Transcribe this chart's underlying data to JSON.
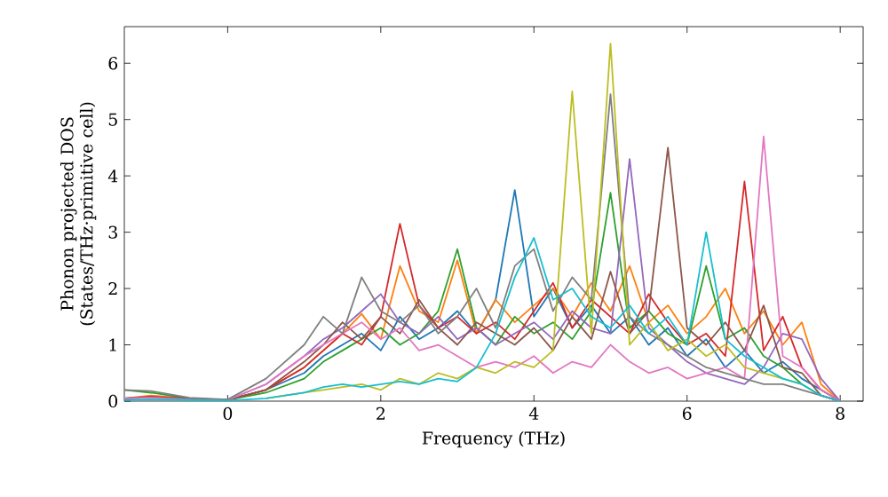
{
  "chart_data": {
    "type": "line",
    "xlabel": "Frequency (THz)",
    "ylabel": "Phonon projected DOS (States/THz·primitive cell)",
    "x": [
      -1.35,
      -1,
      -0.5,
      0,
      0.5,
      1,
      1.25,
      1.5,
      1.75,
      2,
      2.25,
      2.5,
      2.75,
      3,
      3.25,
      3.5,
      3.75,
      4,
      4.25,
      4.5,
      4.75,
      5,
      5.25,
      5.5,
      5.75,
      6,
      6.25,
      6.5,
      6.75,
      7,
      7.25,
      7.5,
      7.75,
      8
    ],
    "xlim": [
      -1.35,
      8.3
    ],
    "ylim": [
      0,
      6.65
    ],
    "xticks": [
      0,
      2,
      4,
      6,
      8
    ],
    "yticks": [
      0,
      1,
      2,
      3,
      4,
      5,
      6
    ],
    "grid": false,
    "marker": "none",
    "line_style": "solid",
    "series": [
      {
        "color": "#1f77b4",
        "values": [
          null,
          null,
          null,
          0.02,
          0.2,
          0.5,
          0.8,
          1.0,
          1.2,
          0.9,
          1.5,
          1.1,
          1.3,
          1.6,
          1.2,
          1.8,
          3.75,
          1.5,
          2.0,
          1.3,
          1.7,
          1.2,
          1.5,
          1.0,
          1.3,
          0.8,
          1.1,
          0.6,
          0.9,
          0.5,
          0.7,
          0.4,
          0.2,
          0.0
        ]
      },
      {
        "color": "#ff7f0e",
        "values": [
          0.05,
          0.1,
          0.05,
          0.02,
          0.2,
          0.6,
          0.9,
          1.2,
          1.55,
          1.1,
          2.4,
          1.6,
          1.4,
          2.5,
          1.2,
          1.8,
          1.4,
          1.7,
          2.0,
          1.5,
          2.1,
          1.6,
          2.4,
          1.4,
          1.7,
          1.2,
          1.5,
          2.0,
          1.2,
          1.6,
          1.0,
          1.4,
          0.3,
          0.0
        ]
      },
      {
        "color": "#2ca02c",
        "values": [
          0.2,
          0.15,
          0.05,
          0.02,
          0.15,
          0.4,
          0.7,
          0.9,
          1.1,
          1.3,
          1.0,
          1.2,
          1.6,
          2.7,
          1.3,
          1.0,
          1.5,
          1.2,
          1.4,
          1.1,
          1.6,
          3.7,
          1.3,
          1.6,
          1.2,
          1.0,
          2.4,
          1.1,
          1.3,
          0.8,
          0.6,
          0.3,
          0.1,
          0.0
        ]
      },
      {
        "color": "#d62728",
        "values": [
          0.05,
          0.08,
          0.04,
          0.02,
          0.2,
          0.6,
          0.9,
          1.2,
          1.0,
          1.5,
          3.15,
          1.7,
          1.3,
          1.5,
          1.2,
          1.4,
          1.1,
          1.6,
          2.1,
          1.3,
          1.8,
          1.5,
          1.2,
          1.9,
          1.4,
          1.0,
          1.2,
          0.8,
          3.9,
          0.9,
          1.5,
          0.6,
          0.2,
          0.0
        ]
      },
      {
        "color": "#9467bd",
        "values": [
          0.05,
          0.06,
          0.03,
          0.02,
          0.3,
          0.8,
          1.1,
          1.3,
          1.6,
          1.9,
          1.4,
          1.2,
          1.5,
          1.1,
          1.3,
          1.0,
          1.2,
          1.4,
          1.1,
          1.6,
          1.3,
          1.2,
          4.3,
          1.3,
          1.0,
          0.7,
          0.5,
          0.4,
          0.3,
          0.6,
          1.2,
          1.1,
          0.4,
          0.0
        ]
      },
      {
        "color": "#8c564b",
        "values": [
          0.05,
          0.07,
          0.04,
          0.02,
          0.2,
          0.7,
          1.0,
          1.4,
          1.1,
          1.5,
          1.2,
          1.8,
          1.3,
          1.0,
          1.4,
          1.2,
          1.0,
          1.3,
          0.9,
          1.5,
          1.1,
          2.3,
          1.2,
          1.6,
          4.5,
          1.3,
          1.0,
          1.4,
          0.9,
          1.7,
          0.6,
          0.5,
          0.1,
          0.0
        ]
      },
      {
        "color": "#e377c2",
        "values": [
          0.05,
          0.06,
          0.03,
          0.02,
          0.3,
          0.8,
          1.0,
          1.2,
          1.4,
          1.1,
          1.3,
          0.9,
          1.0,
          0.8,
          0.6,
          0.7,
          0.6,
          0.8,
          0.5,
          0.7,
          0.6,
          1.0,
          0.7,
          0.5,
          0.6,
          0.4,
          0.5,
          0.6,
          0.4,
          4.7,
          0.8,
          0.6,
          0.2,
          0.0
        ]
      },
      {
        "color": "#7f7f7f",
        "values": [
          0.2,
          0.18,
          0.06,
          0.03,
          0.4,
          1.0,
          1.5,
          1.2,
          2.2,
          1.6,
          1.4,
          1.7,
          1.2,
          1.5,
          2.0,
          1.3,
          2.4,
          2.7,
          1.6,
          2.2,
          1.8,
          5.45,
          1.5,
          1.2,
          1.0,
          0.8,
          0.6,
          0.5,
          0.4,
          0.3,
          0.3,
          0.2,
          0.1,
          0.0
        ]
      },
      {
        "color": "#bcbd22",
        "values": [
          null,
          null,
          null,
          null,
          0.05,
          0.15,
          0.2,
          0.25,
          0.3,
          0.2,
          0.4,
          0.3,
          0.5,
          0.4,
          0.6,
          0.5,
          0.7,
          0.6,
          0.9,
          5.5,
          1.2,
          6.35,
          1.0,
          1.4,
          0.9,
          1.1,
          0.8,
          1.0,
          0.6,
          0.5,
          0.4,
          0.3,
          null,
          null
        ]
      },
      {
        "color": "#17becf",
        "values": [
          0.02,
          0.03,
          0.02,
          0.01,
          0.05,
          0.15,
          0.25,
          0.3,
          0.25,
          0.3,
          0.35,
          0.3,
          0.4,
          0.35,
          0.6,
          1.2,
          2.2,
          2.9,
          1.8,
          2.0,
          1.5,
          1.3,
          1.7,
          1.2,
          1.5,
          1.0,
          3.0,
          1.1,
          0.8,
          0.6,
          0.4,
          0.3,
          0.1,
          0.0
        ]
      }
    ]
  }
}
